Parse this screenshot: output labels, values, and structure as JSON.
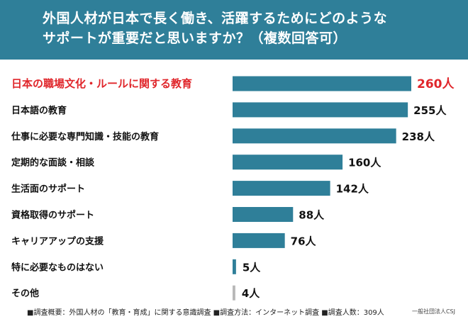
{
  "header": {
    "title_line1": "外国人材が日本で長く働き、活躍するためにどのような",
    "title_line2": "サポートが重要だと思いますか？（複数回答可）"
  },
  "colors": {
    "header_bg": "#2f7f99",
    "bar": "#2f7f99",
    "bar_other": "#b8b8b8",
    "highlight_text": "#e0262b",
    "text": "#111111"
  },
  "chart_data": {
    "type": "bar",
    "orientation": "horizontal",
    "categories": [
      "日本の職場文化・ルールに関する教育",
      "日本語の教育",
      "仕事に必要な専門知識・技能の教育",
      "定期的な面談・相談",
      "生活面のサポート",
      "資格取得のサポート",
      "キャリアアップの支援",
      "特に必要なものはない",
      "その他"
    ],
    "values": [
      260,
      255,
      238,
      160,
      142,
      88,
      76,
      5,
      4
    ],
    "value_labels": [
      "260人",
      "255人",
      "238人",
      "160人",
      "142人",
      "88人",
      "76人",
      "5人",
      "4人"
    ],
    "highlight_index": 0,
    "other_index": 8,
    "title": "",
    "xlabel": "",
    "ylabel": "",
    "xlim": [
      0,
      260
    ],
    "grid": false,
    "legend": "none"
  },
  "footer": {
    "survey_info": "■調査概要：外国人材の「教育・育成」に関する意識調査 ■調査方法：インターネット調査 ■調査人数：309人",
    "credit": "一般社団法人CSJ"
  }
}
